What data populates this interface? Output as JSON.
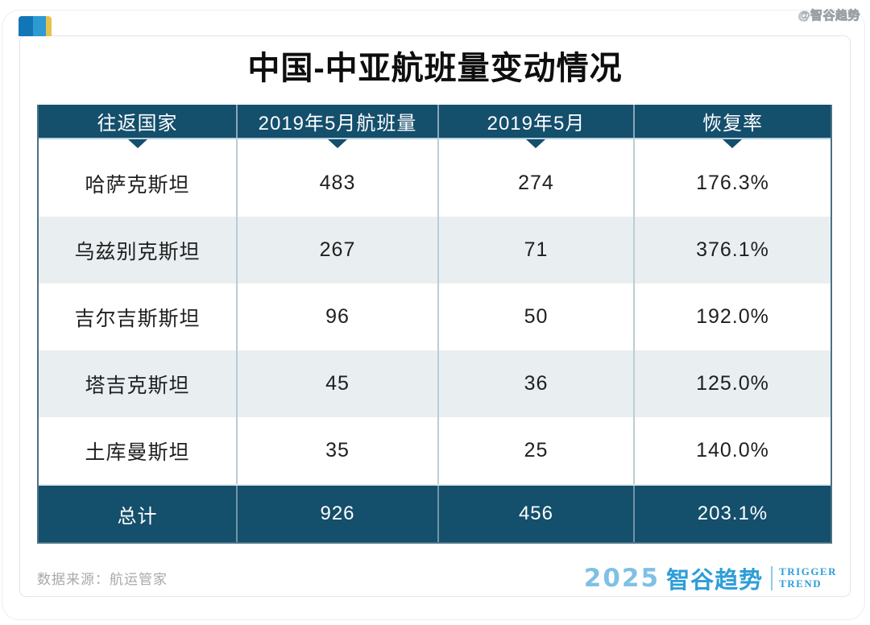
{
  "title": "中国-中亚航班量变动情况",
  "watermark": "@智谷趋势",
  "chart_data": {
    "type": "table",
    "title": "中国-中亚航班量变动情况",
    "columns": [
      "往返国家",
      "2019年5月航班量",
      "2019年5月",
      "恢复率"
    ],
    "rows": [
      [
        "哈萨克斯坦",
        "483",
        "274",
        "176.3%"
      ],
      [
        "乌兹别克斯坦",
        "267",
        "71",
        "376.1%"
      ],
      [
        "吉尔吉斯斯坦",
        "96",
        "50",
        "192.0%"
      ],
      [
        "塔吉克斯坦",
        "45",
        "36",
        "125.0%"
      ],
      [
        "土库曼斯坦",
        "35",
        "25",
        "140.0%"
      ]
    ],
    "total_row": [
      "总计",
      "926",
      "456",
      "203.1%"
    ]
  },
  "footer": {
    "source": "数据来源：航运管家",
    "logo": {
      "year": "2025",
      "brand": "智谷趋势",
      "en_top": "TRIGGER",
      "en_bottom": "TREND"
    }
  },
  "colors": {
    "header_bg": "#144f6c",
    "row_alt_bg": "#e9eef1",
    "table_border": "#4a7183",
    "body_divider": "#b9cdd6",
    "logo_blue": "#2e9ed8",
    "logo_light_blue": "#7fc0e4",
    "icon_dark_blue": "#1276b6",
    "icon_light_blue": "#2e9ad3",
    "icon_yellow": "#e7c24a"
  }
}
